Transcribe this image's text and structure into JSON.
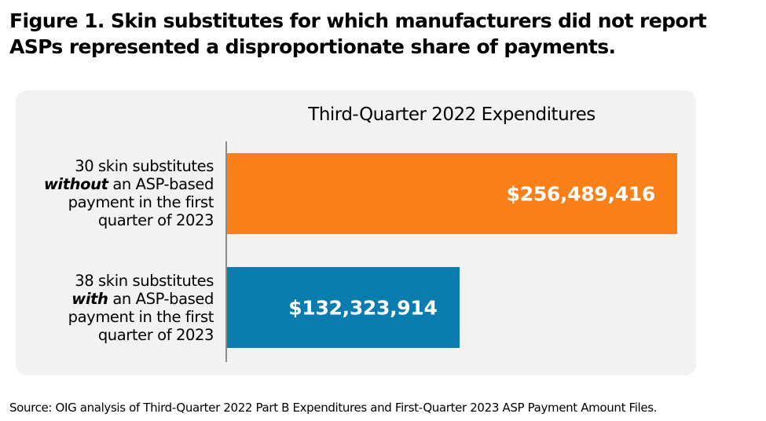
{
  "figure_title": "Figure 1.  Skin substitutes for which manufacturers did not report ASPs represented a disproportionate share of payments.",
  "source": "Source: OIG analysis of Third-Quarter 2022 Part B Expenditures and First-Quarter 2023 ASP Payment Amount Files.",
  "chart_data": {
    "type": "bar",
    "orientation": "horizontal",
    "title": "Third-Quarter 2022 Expenditures",
    "categories": [
      {
        "pre": "30 skin substitutes",
        "emphasis": "without",
        "post": "an ASP-based payment in the first quarter of 2023"
      },
      {
        "pre": "38 skin substitutes",
        "emphasis": "with",
        "post": "an ASP-based payment in the first quarter of 2023"
      }
    ],
    "values": [
      256489416,
      132323914
    ],
    "value_labels": [
      "$256,489,416",
      "$132,323,914"
    ],
    "colors": [
      "#F98019",
      "#0A7DAE"
    ],
    "xlim": [
      0,
      256489416
    ],
    "grid": false,
    "legend": "none"
  }
}
